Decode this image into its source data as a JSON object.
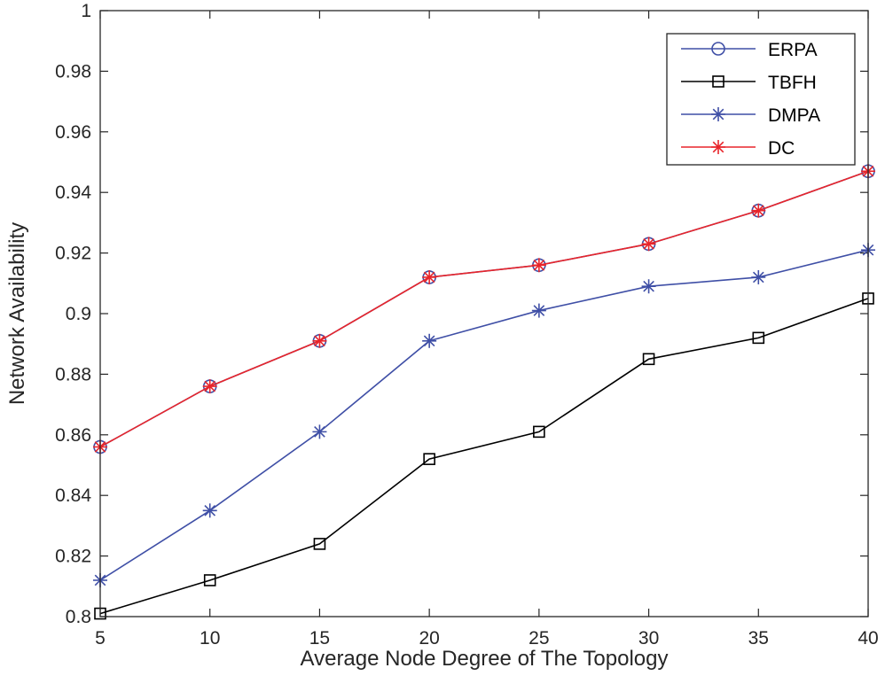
{
  "chart_data": {
    "type": "line",
    "title": "",
    "xlabel": "Average Node Degree of The Topology",
    "ylabel": "Network Availability",
    "xlim": [
      5,
      40
    ],
    "ylim": [
      0.8,
      1.0
    ],
    "x": [
      5,
      10,
      15,
      20,
      25,
      30,
      35,
      40
    ],
    "xticks": [
      5,
      10,
      15,
      20,
      25,
      30,
      35,
      40
    ],
    "xtick_labels": [
      "5",
      "10",
      "15",
      "20",
      "25",
      "30",
      "35",
      "40"
    ],
    "yticks": [
      0.8,
      0.82,
      0.84,
      0.86,
      0.88,
      0.9,
      0.92,
      0.94,
      0.96,
      0.98,
      1.0
    ],
    "ytick_labels": [
      "0.8",
      "0.82",
      "0.84",
      "0.86",
      "0.88",
      "0.9",
      "0.92",
      "0.94",
      "0.96",
      "0.98",
      "1"
    ],
    "grid": false,
    "legend_position": "top-right",
    "series": [
      {
        "name": "ERPA",
        "color": "#3f4fa6",
        "marker": "circle",
        "values": [
          0.856,
          0.876,
          0.891,
          0.912,
          0.916,
          0.923,
          0.934,
          0.947
        ]
      },
      {
        "name": "TBFH",
        "color": "#000000",
        "marker": "square",
        "values": [
          0.801,
          0.812,
          0.824,
          0.852,
          0.861,
          0.885,
          0.892,
          0.905
        ]
      },
      {
        "name": "DMPA",
        "color": "#3f4fa6",
        "marker": "asterisk",
        "values": [
          0.812,
          0.835,
          0.861,
          0.891,
          0.901,
          0.909,
          0.912,
          0.921
        ]
      },
      {
        "name": "DC",
        "color": "#e8252b",
        "marker": "asterisk",
        "values": [
          0.856,
          0.876,
          0.891,
          0.912,
          0.916,
          0.923,
          0.934,
          0.947
        ]
      }
    ]
  }
}
